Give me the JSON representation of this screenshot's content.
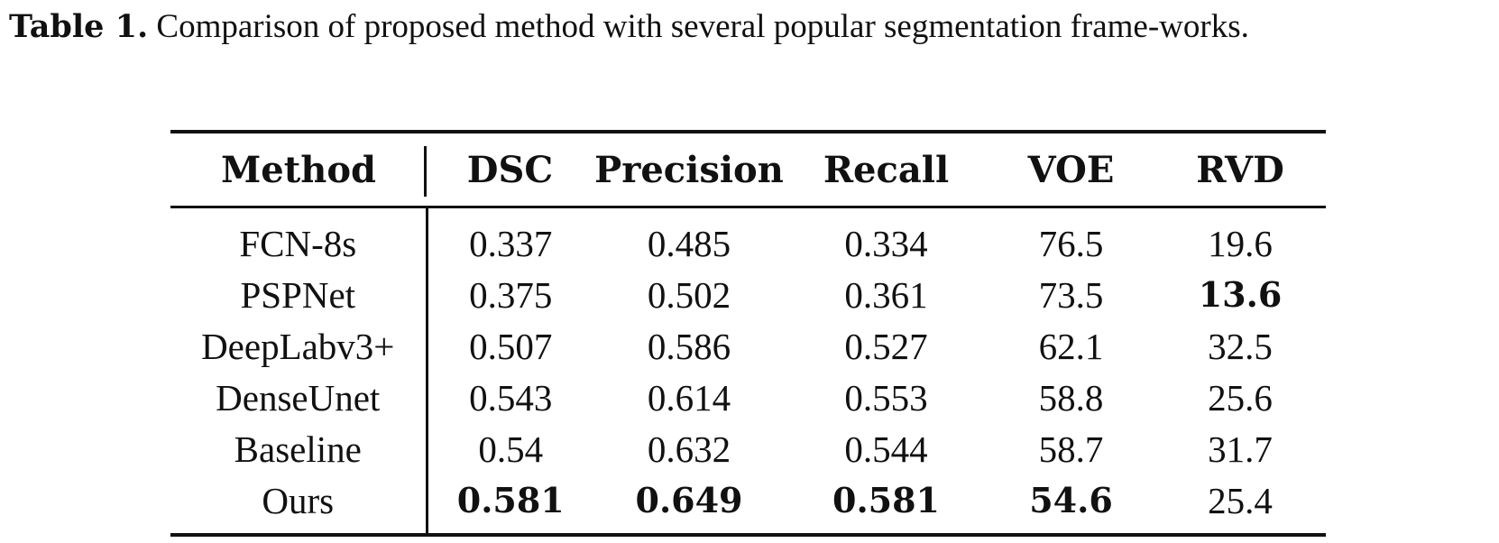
{
  "caption": {
    "label": "Table 1.",
    "text": "Comparison of proposed method with several popular segmentation frame-works."
  },
  "table": {
    "headers": [
      "Method",
      "DSC",
      "Precision",
      "Recall",
      "VOE",
      "RVD"
    ],
    "rows": [
      {
        "method": "FCN-8s",
        "dsc": "0.337",
        "precision": "0.485",
        "recall": "0.334",
        "voe": "76.5",
        "rvd": "19.6"
      },
      {
        "method": "PSPNet",
        "dsc": "0.375",
        "precision": "0.502",
        "recall": "0.361",
        "voe": "73.5",
        "rvd": "13.6"
      },
      {
        "method": "DeepLabv3+",
        "dsc": "0.507",
        "precision": "0.586",
        "recall": "0.527",
        "voe": "62.1",
        "rvd": "32.5"
      },
      {
        "method": "DenseUnet",
        "dsc": "0.543",
        "precision": "0.614",
        "recall": "0.553",
        "voe": "58.8",
        "rvd": "25.6"
      },
      {
        "method": "Baseline",
        "dsc": "0.54",
        "precision": "0.632",
        "recall": "0.544",
        "voe": "58.7",
        "rvd": "31.7"
      },
      {
        "method": "Ours",
        "dsc": "0.581",
        "precision": "0.649",
        "recall": "0.581",
        "voe": "54.6",
        "rvd": "25.4"
      }
    ]
  }
}
